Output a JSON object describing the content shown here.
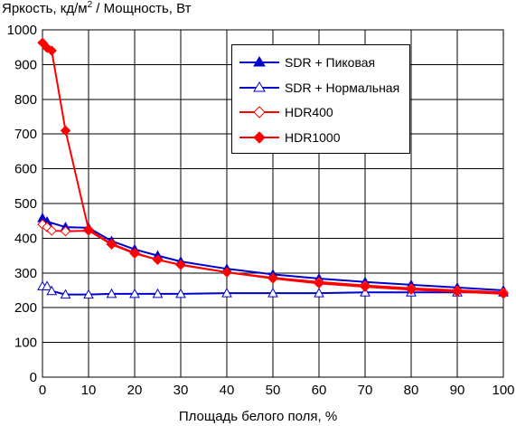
{
  "chart_data": {
    "type": "line",
    "title": "",
    "ylabel_prefix": "Яркость, кд/м",
    "ylabel_sup": "2",
    "ylabel_suffix": " / Мощность, Вт",
    "xlabel": "Площадь белого поля, %",
    "xlim": [
      0,
      100
    ],
    "ylim": [
      0,
      1000
    ],
    "xticks": [
      0,
      10,
      20,
      30,
      40,
      50,
      60,
      70,
      80,
      90,
      100
    ],
    "yticks": [
      0,
      100,
      200,
      300,
      400,
      500,
      600,
      700,
      800,
      900,
      1000
    ],
    "grid": true,
    "legend_position": "top-right",
    "series": [
      {
        "name": "SDR + Пиковая",
        "color": "#0000cc",
        "marker": "triangle-filled",
        "x": [
          0,
          1,
          5,
          10,
          15,
          20,
          25,
          30,
          40,
          50,
          60,
          70,
          80,
          90,
          100
        ],
        "y": [
          458,
          448,
          432,
          430,
          392,
          368,
          350,
          333,
          312,
          296,
          284,
          274,
          266,
          258,
          250
        ]
      },
      {
        "name": "SDR + Нормальная",
        "color": "#0000cc",
        "marker": "triangle-open",
        "x": [
          0,
          1,
          2,
          5,
          10,
          15,
          20,
          25,
          30,
          40,
          50,
          60,
          70,
          80,
          90,
          100
        ],
        "y": [
          262,
          262,
          248,
          238,
          238,
          240,
          240,
          240,
          240,
          242,
          242,
          242,
          244,
          244,
          244,
          244
        ]
      },
      {
        "name": "HDR400",
        "color": "#ff0000",
        "marker": "diamond-open",
        "x": [
          0,
          1,
          2,
          5,
          10,
          15,
          20,
          25,
          30,
          40,
          50,
          60,
          70,
          80,
          90,
          100
        ],
        "y": [
          440,
          432,
          422,
          420,
          422,
          382,
          356,
          338,
          323,
          302,
          286,
          274,
          264,
          256,
          250,
          244
        ]
      },
      {
        "name": "HDR1000",
        "color": "#ff0000",
        "marker": "diamond-filled",
        "x": [
          0,
          1,
          2,
          5,
          10,
          15,
          20,
          25,
          30,
          40,
          50,
          60,
          70,
          80,
          90,
          100
        ],
        "y": [
          963,
          948,
          940,
          710,
          425,
          384,
          358,
          338,
          324,
          302,
          284,
          270,
          260,
          252,
          246,
          240
        ]
      }
    ]
  }
}
